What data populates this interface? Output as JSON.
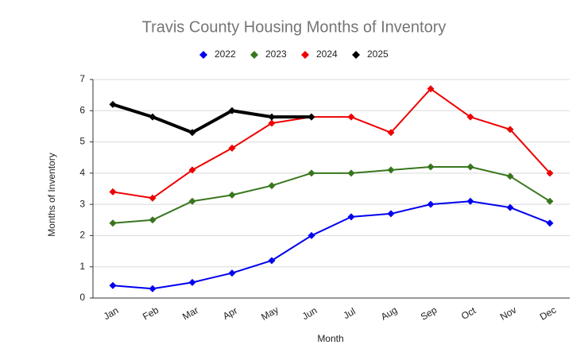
{
  "chart_data": {
    "type": "line",
    "title": "Travis County Housing Months of Inventory",
    "x_label": "Month",
    "y_label": "Months of Inventory",
    "categories": [
      "Jan",
      "Feb",
      "Mar",
      "Apr",
      "May",
      "Jun",
      "Jul",
      "Aug",
      "Sep",
      "Oct",
      "Nov",
      "Dec"
    ],
    "series": [
      {
        "name": "2022",
        "color": "#0000ee",
        "values": [
          0.4,
          0.3,
          0.5,
          0.8,
          1.2,
          2.0,
          2.6,
          2.7,
          3.0,
          3.1,
          2.9,
          2.4
        ]
      },
      {
        "name": "2023",
        "color": "#38761d",
        "values": [
          2.4,
          2.5,
          3.1,
          3.3,
          3.6,
          4.0,
          4.0,
          4.1,
          4.2,
          4.2,
          3.9,
          3.1
        ]
      },
      {
        "name": "2024",
        "color": "#ee0000",
        "values": [
          3.4,
          3.2,
          4.1,
          4.8,
          5.6,
          5.8,
          5.8,
          5.3,
          6.7,
          5.8,
          5.4,
          4.0
        ]
      },
      {
        "name": "2025",
        "color": "#000000",
        "values": [
          6.2,
          5.8,
          5.3,
          6.0,
          5.8,
          5.8,
          null,
          null,
          null,
          null,
          null,
          null
        ]
      }
    ],
    "ylim": [
      0,
      7
    ],
    "yticks": [
      0,
      1,
      2,
      3,
      4,
      5,
      6,
      7
    ],
    "grid": true,
    "legend": "top"
  }
}
